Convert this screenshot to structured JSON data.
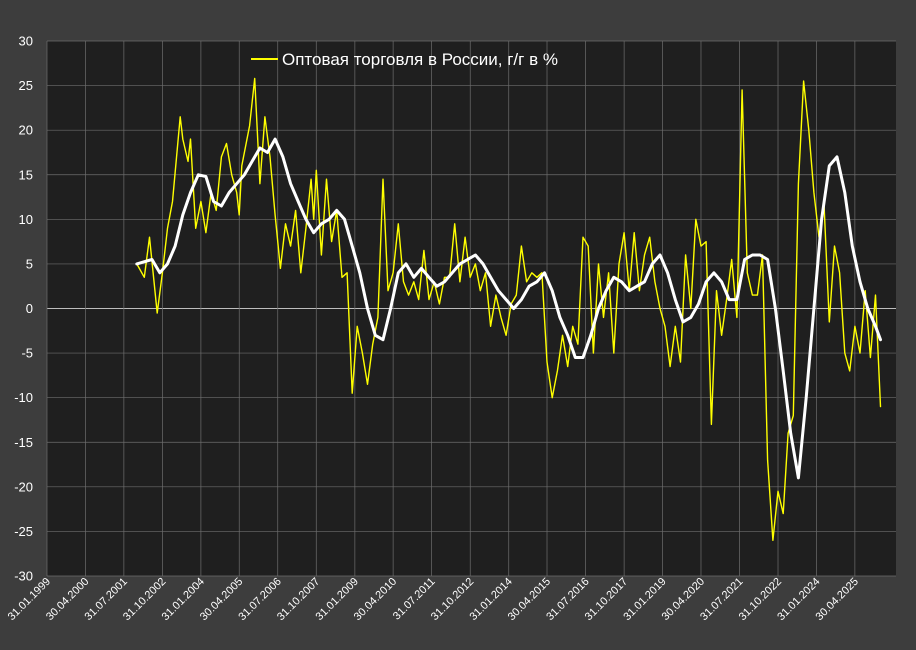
{
  "colors": {
    "background": "#3d3d3d",
    "plot_area": "#1f1f1f",
    "grid": "#6e6e6e",
    "zero_line": "#bdbdbd",
    "axis_text": "#ffffff",
    "series_raw": "#ffff00",
    "series_smooth": "#ffffff"
  },
  "chart_data": {
    "type": "line",
    "title": "",
    "xlabel": "",
    "ylabel": "",
    "ylim": [
      -30,
      30
    ],
    "y_ticks": [
      30,
      25,
      20,
      15,
      10,
      5,
      0,
      -5,
      -10,
      -15,
      -20,
      -25,
      -30
    ],
    "x_range": [
      "1999-01-31",
      "2026-08-31"
    ],
    "x_tick_labels": [
      "31.01.1999",
      "30.04.2000",
      "31.07.2001",
      "31.10.2002",
      "31.01.2004",
      "30.04.2005",
      "31.07.2006",
      "31.10.2007",
      "31.01.2009",
      "30.04.2010",
      "31.07.2011",
      "31.10.2012",
      "31.01.2014",
      "30.04.2015",
      "31.07.2016",
      "31.10.2017",
      "31.01.2019",
      "30.04.2020",
      "31.07.2021",
      "31.10.2022",
      "31.01.2024",
      "30.04.2025"
    ],
    "grid": true,
    "legend": "top-center",
    "series": [
      {
        "name": "Оптовая торговля в России, г/г в %",
        "color": "#ffff00",
        "points": [
          [
            "2001-12-31",
            5
          ],
          [
            "2002-03-31",
            3.5
          ],
          [
            "2002-05-31",
            8
          ],
          [
            "2002-08-31",
            -0.5
          ],
          [
            "2002-10-31",
            4
          ],
          [
            "2002-12-31",
            9
          ],
          [
            "2003-02-28",
            12
          ],
          [
            "2003-05-31",
            21.5
          ],
          [
            "2003-06-30",
            19
          ],
          [
            "2003-08-31",
            16.5
          ],
          [
            "2003-09-30",
            19
          ],
          [
            "2003-11-30",
            9
          ],
          [
            "2004-01-31",
            12
          ],
          [
            "2004-03-31",
            8.5
          ],
          [
            "2004-05-31",
            13
          ],
          [
            "2004-07-31",
            11
          ],
          [
            "2004-09-30",
            17
          ],
          [
            "2004-11-30",
            18.5
          ],
          [
            "2005-01-31",
            15
          ],
          [
            "2005-03-31",
            13
          ],
          [
            "2005-04-30",
            10.5
          ],
          [
            "2005-05-31",
            16
          ],
          [
            "2005-08-31",
            20.5
          ],
          [
            "2005-10-31",
            25.8
          ],
          [
            "2005-12-31",
            14
          ],
          [
            "2006-02-28",
            21.5
          ],
          [
            "2006-04-30",
            17
          ],
          [
            "2006-06-30",
            10.5
          ],
          [
            "2006-08-31",
            4.5
          ],
          [
            "2006-10-31",
            9.5
          ],
          [
            "2006-12-31",
            7
          ],
          [
            "2007-02-28",
            11
          ],
          [
            "2007-04-30",
            4
          ],
          [
            "2007-06-30",
            9
          ],
          [
            "2007-08-31",
            14.5
          ],
          [
            "2007-09-30",
            10
          ],
          [
            "2007-10-31",
            15.5
          ],
          [
            "2007-12-31",
            6
          ],
          [
            "2008-02-29",
            14.5
          ],
          [
            "2008-04-30",
            7.5
          ],
          [
            "2008-06-30",
            11
          ],
          [
            "2008-08-31",
            3.5
          ],
          [
            "2008-10-31",
            4
          ],
          [
            "2008-12-31",
            -9.5
          ],
          [
            "2009-02-28",
            -2
          ],
          [
            "2009-04-30",
            -5
          ],
          [
            "2009-06-30",
            -8.5
          ],
          [
            "2009-08-31",
            -4
          ],
          [
            "2009-10-31",
            -1
          ],
          [
            "2009-12-31",
            14.5
          ],
          [
            "2010-02-28",
            2
          ],
          [
            "2010-04-30",
            4
          ],
          [
            "2010-06-30",
            9.5
          ],
          [
            "2010-08-31",
            3
          ],
          [
            "2010-10-31",
            1.5
          ],
          [
            "2010-12-31",
            3
          ],
          [
            "2011-02-28",
            1
          ],
          [
            "2011-04-30",
            6.5
          ],
          [
            "2011-06-30",
            1
          ],
          [
            "2011-08-31",
            3
          ],
          [
            "2011-10-31",
            0.5
          ],
          [
            "2011-12-31",
            3.5
          ],
          [
            "2012-02-29",
            3.5
          ],
          [
            "2012-04-30",
            9.5
          ],
          [
            "2012-06-30",
            3
          ],
          [
            "2012-08-31",
            8
          ],
          [
            "2012-10-31",
            3.5
          ],
          [
            "2012-12-31",
            5
          ],
          [
            "2013-02-28",
            2
          ],
          [
            "2013-04-30",
            4
          ],
          [
            "2013-06-30",
            -2
          ],
          [
            "2013-08-31",
            1.5
          ],
          [
            "2013-10-31",
            -1
          ],
          [
            "2013-12-31",
            -3
          ],
          [
            "2014-02-28",
            0.5
          ],
          [
            "2014-04-30",
            1.5
          ],
          [
            "2014-06-30",
            7
          ],
          [
            "2014-08-31",
            3
          ],
          [
            "2014-10-31",
            4
          ],
          [
            "2014-12-31",
            3.5
          ],
          [
            "2015-02-28",
            4
          ],
          [
            "2015-04-30",
            -6
          ],
          [
            "2015-06-30",
            -10
          ],
          [
            "2015-08-31",
            -7
          ],
          [
            "2015-10-31",
            -3
          ],
          [
            "2015-12-31",
            -6.5
          ],
          [
            "2016-02-29",
            -2
          ],
          [
            "2016-04-30",
            -4
          ],
          [
            "2016-06-30",
            8
          ],
          [
            "2016-08-31",
            7
          ],
          [
            "2016-10-31",
            -5
          ],
          [
            "2016-12-31",
            5
          ],
          [
            "2017-02-28",
            -1
          ],
          [
            "2017-04-30",
            4
          ],
          [
            "2017-06-30",
            -5
          ],
          [
            "2017-08-31",
            5
          ],
          [
            "2017-10-31",
            8.5
          ],
          [
            "2017-12-31",
            2
          ],
          [
            "2018-02-28",
            8.5
          ],
          [
            "2018-04-30",
            2
          ],
          [
            "2018-06-30",
            6
          ],
          [
            "2018-08-31",
            8
          ],
          [
            "2018-10-31",
            3
          ],
          [
            "2018-12-31",
            0
          ],
          [
            "2019-02-28",
            -2
          ],
          [
            "2019-04-30",
            -6.5
          ],
          [
            "2019-06-30",
            -2
          ],
          [
            "2019-08-31",
            -6
          ],
          [
            "2019-10-31",
            6
          ],
          [
            "2019-12-31",
            0
          ],
          [
            "2020-02-29",
            10
          ],
          [
            "2020-04-30",
            7
          ],
          [
            "2020-06-30",
            7.5
          ],
          [
            "2020-08-31",
            -13
          ],
          [
            "2020-10-31",
            2
          ],
          [
            "2020-12-31",
            -3
          ],
          [
            "2021-02-28",
            1
          ],
          [
            "2021-04-30",
            5.5
          ],
          [
            "2021-06-30",
            -1
          ],
          [
            "2021-08-31",
            24.5
          ],
          [
            "2021-10-31",
            4
          ],
          [
            "2021-12-31",
            1.5
          ],
          [
            "2022-02-28",
            1.5
          ],
          [
            "2022-04-30",
            6
          ],
          [
            "2022-06-30",
            -17
          ],
          [
            "2022-08-31",
            -26
          ],
          [
            "2022-10-31",
            -20.5
          ],
          [
            "2022-12-31",
            -23
          ],
          [
            "2023-02-28",
            -14
          ],
          [
            "2023-04-30",
            -12
          ],
          [
            "2023-06-30",
            14
          ],
          [
            "2023-08-31",
            25.5
          ],
          [
            "2023-10-31",
            20
          ],
          [
            "2023-12-31",
            13
          ],
          [
            "2024-02-29",
            8
          ],
          [
            "2024-04-30",
            11.5
          ],
          [
            "2024-06-30",
            -1.5
          ],
          [
            "2024-08-31",
            7
          ],
          [
            "2024-10-31",
            4
          ],
          [
            "2024-12-31",
            -5
          ],
          [
            "2025-02-28",
            -7
          ],
          [
            "2025-04-30",
            -2
          ],
          [
            "2025-06-30",
            -5
          ],
          [
            "2025-08-31",
            2
          ],
          [
            "2025-10-31",
            -5.5
          ],
          [
            "2025-12-31",
            1.5
          ],
          [
            "2026-02-28",
            -11
          ]
        ]
      },
      {
        "name": "",
        "color": "#ffffff",
        "points": [
          [
            "2001-12-31",
            5
          ],
          [
            "2002-06-30",
            5.5
          ],
          [
            "2002-09-30",
            4
          ],
          [
            "2002-12-31",
            5
          ],
          [
            "2003-03-31",
            7
          ],
          [
            "2003-06-30",
            10.5
          ],
          [
            "2003-09-30",
            13
          ],
          [
            "2003-12-31",
            15
          ],
          [
            "2004-03-31",
            14.8
          ],
          [
            "2004-06-30",
            12
          ],
          [
            "2004-09-30",
            11.5
          ],
          [
            "2004-12-31",
            13
          ],
          [
            "2005-03-31",
            14
          ],
          [
            "2005-06-30",
            15
          ],
          [
            "2005-09-30",
            16.5
          ],
          [
            "2005-12-31",
            18
          ],
          [
            "2006-03-31",
            17.5
          ],
          [
            "2006-06-30",
            19
          ],
          [
            "2006-09-30",
            17
          ],
          [
            "2006-12-31",
            14
          ],
          [
            "2007-03-31",
            12
          ],
          [
            "2007-06-30",
            10
          ],
          [
            "2007-09-30",
            8.5
          ],
          [
            "2007-12-31",
            9.5
          ],
          [
            "2008-03-31",
            10
          ],
          [
            "2008-06-30",
            11
          ],
          [
            "2008-09-30",
            10
          ],
          [
            "2008-12-31",
            7
          ],
          [
            "2009-03-31",
            4
          ],
          [
            "2009-06-30",
            0
          ],
          [
            "2009-09-30",
            -3
          ],
          [
            "2009-12-31",
            -3.5
          ],
          [
            "2010-03-31",
            0
          ],
          [
            "2010-06-30",
            4
          ],
          [
            "2010-09-30",
            5
          ],
          [
            "2010-12-31",
            3.5
          ],
          [
            "2011-03-31",
            4.5
          ],
          [
            "2011-06-30",
            3.5
          ],
          [
            "2011-09-30",
            2.5
          ],
          [
            "2011-12-31",
            3
          ],
          [
            "2012-03-31",
            4
          ],
          [
            "2012-06-30",
            5
          ],
          [
            "2012-09-30",
            5.5
          ],
          [
            "2012-12-31",
            6
          ],
          [
            "2013-03-31",
            5
          ],
          [
            "2013-06-30",
            3.5
          ],
          [
            "2013-09-30",
            2
          ],
          [
            "2013-12-31",
            1
          ],
          [
            "2014-03-31",
            0
          ],
          [
            "2014-06-30",
            1
          ],
          [
            "2014-09-30",
            2.5
          ],
          [
            "2014-12-31",
            3
          ],
          [
            "2015-03-31",
            4
          ],
          [
            "2015-06-30",
            2
          ],
          [
            "2015-09-30",
            -1
          ],
          [
            "2015-12-31",
            -3
          ],
          [
            "2016-03-31",
            -5.5
          ],
          [
            "2016-06-30",
            -5.5
          ],
          [
            "2016-09-30",
            -3
          ],
          [
            "2016-12-31",
            0
          ],
          [
            "2017-03-31",
            2
          ],
          [
            "2017-06-30",
            3.5
          ],
          [
            "2017-09-30",
            3
          ],
          [
            "2017-12-31",
            2
          ],
          [
            "2018-03-31",
            2.5
          ],
          [
            "2018-06-30",
            3
          ],
          [
            "2018-09-30",
            5
          ],
          [
            "2018-12-31",
            6
          ],
          [
            "2019-03-31",
            4
          ],
          [
            "2019-06-30",
            1
          ],
          [
            "2019-09-30",
            -1.5
          ],
          [
            "2019-12-31",
            -1
          ],
          [
            "2020-03-31",
            0.5
          ],
          [
            "2020-06-30",
            3
          ],
          [
            "2020-09-30",
            4
          ],
          [
            "2020-12-31",
            3
          ],
          [
            "2021-03-31",
            1
          ],
          [
            "2021-06-30",
            1
          ],
          [
            "2021-09-30",
            5.5
          ],
          [
            "2021-12-31",
            6
          ],
          [
            "2022-03-31",
            6
          ],
          [
            "2022-06-30",
            5.5
          ],
          [
            "2022-09-30",
            0
          ],
          [
            "2022-12-31",
            -7
          ],
          [
            "2023-03-31",
            -14
          ],
          [
            "2023-06-30",
            -19
          ],
          [
            "2023-09-30",
            -10
          ],
          [
            "2023-12-31",
            0
          ],
          [
            "2024-03-31",
            10
          ],
          [
            "2024-06-30",
            16
          ],
          [
            "2024-09-30",
            17
          ],
          [
            "2024-12-31",
            13
          ],
          [
            "2025-03-31",
            7
          ],
          [
            "2025-06-30",
            3
          ],
          [
            "2025-09-30",
            0
          ],
          [
            "2025-12-31",
            -2
          ],
          [
            "2026-02-28",
            -3.5
          ]
        ]
      }
    ]
  }
}
